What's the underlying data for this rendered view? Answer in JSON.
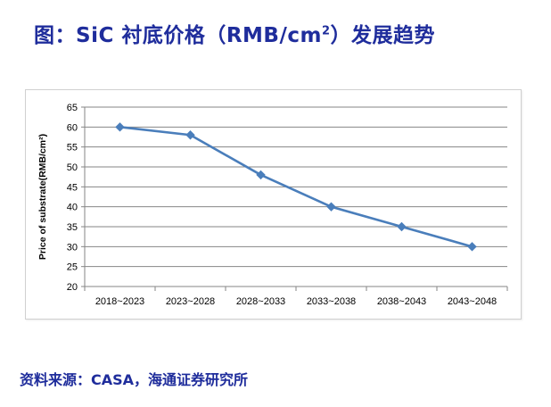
{
  "header": {
    "title_prefix": "图：SiC 衬底价格（RMB/cm",
    "title_sup": "2",
    "title_suffix": "）发展趋势"
  },
  "footer": {
    "source": "资料来源：CASA，海通证券研究所"
  },
  "colors": {
    "title": "#1F2D9C",
    "line": "#4A7EBB",
    "grid": "#868686"
  },
  "chart_data": {
    "type": "line",
    "categories": [
      "2018~2023",
      "2023~2028",
      "2028~2033",
      "2033~2038",
      "2038~2043",
      "2043~2048"
    ],
    "series": [
      {
        "values": [
          60,
          58,
          48,
          40,
          35,
          30
        ]
      }
    ],
    "ylabel": "Price of substrate(RMB/cm²)",
    "xlabel": "",
    "ylim": [
      20,
      65
    ],
    "yticks": [
      20,
      25,
      30,
      35,
      40,
      45,
      50,
      55,
      60,
      65
    ],
    "grid": true,
    "legend": "none",
    "marker": "diamond"
  }
}
